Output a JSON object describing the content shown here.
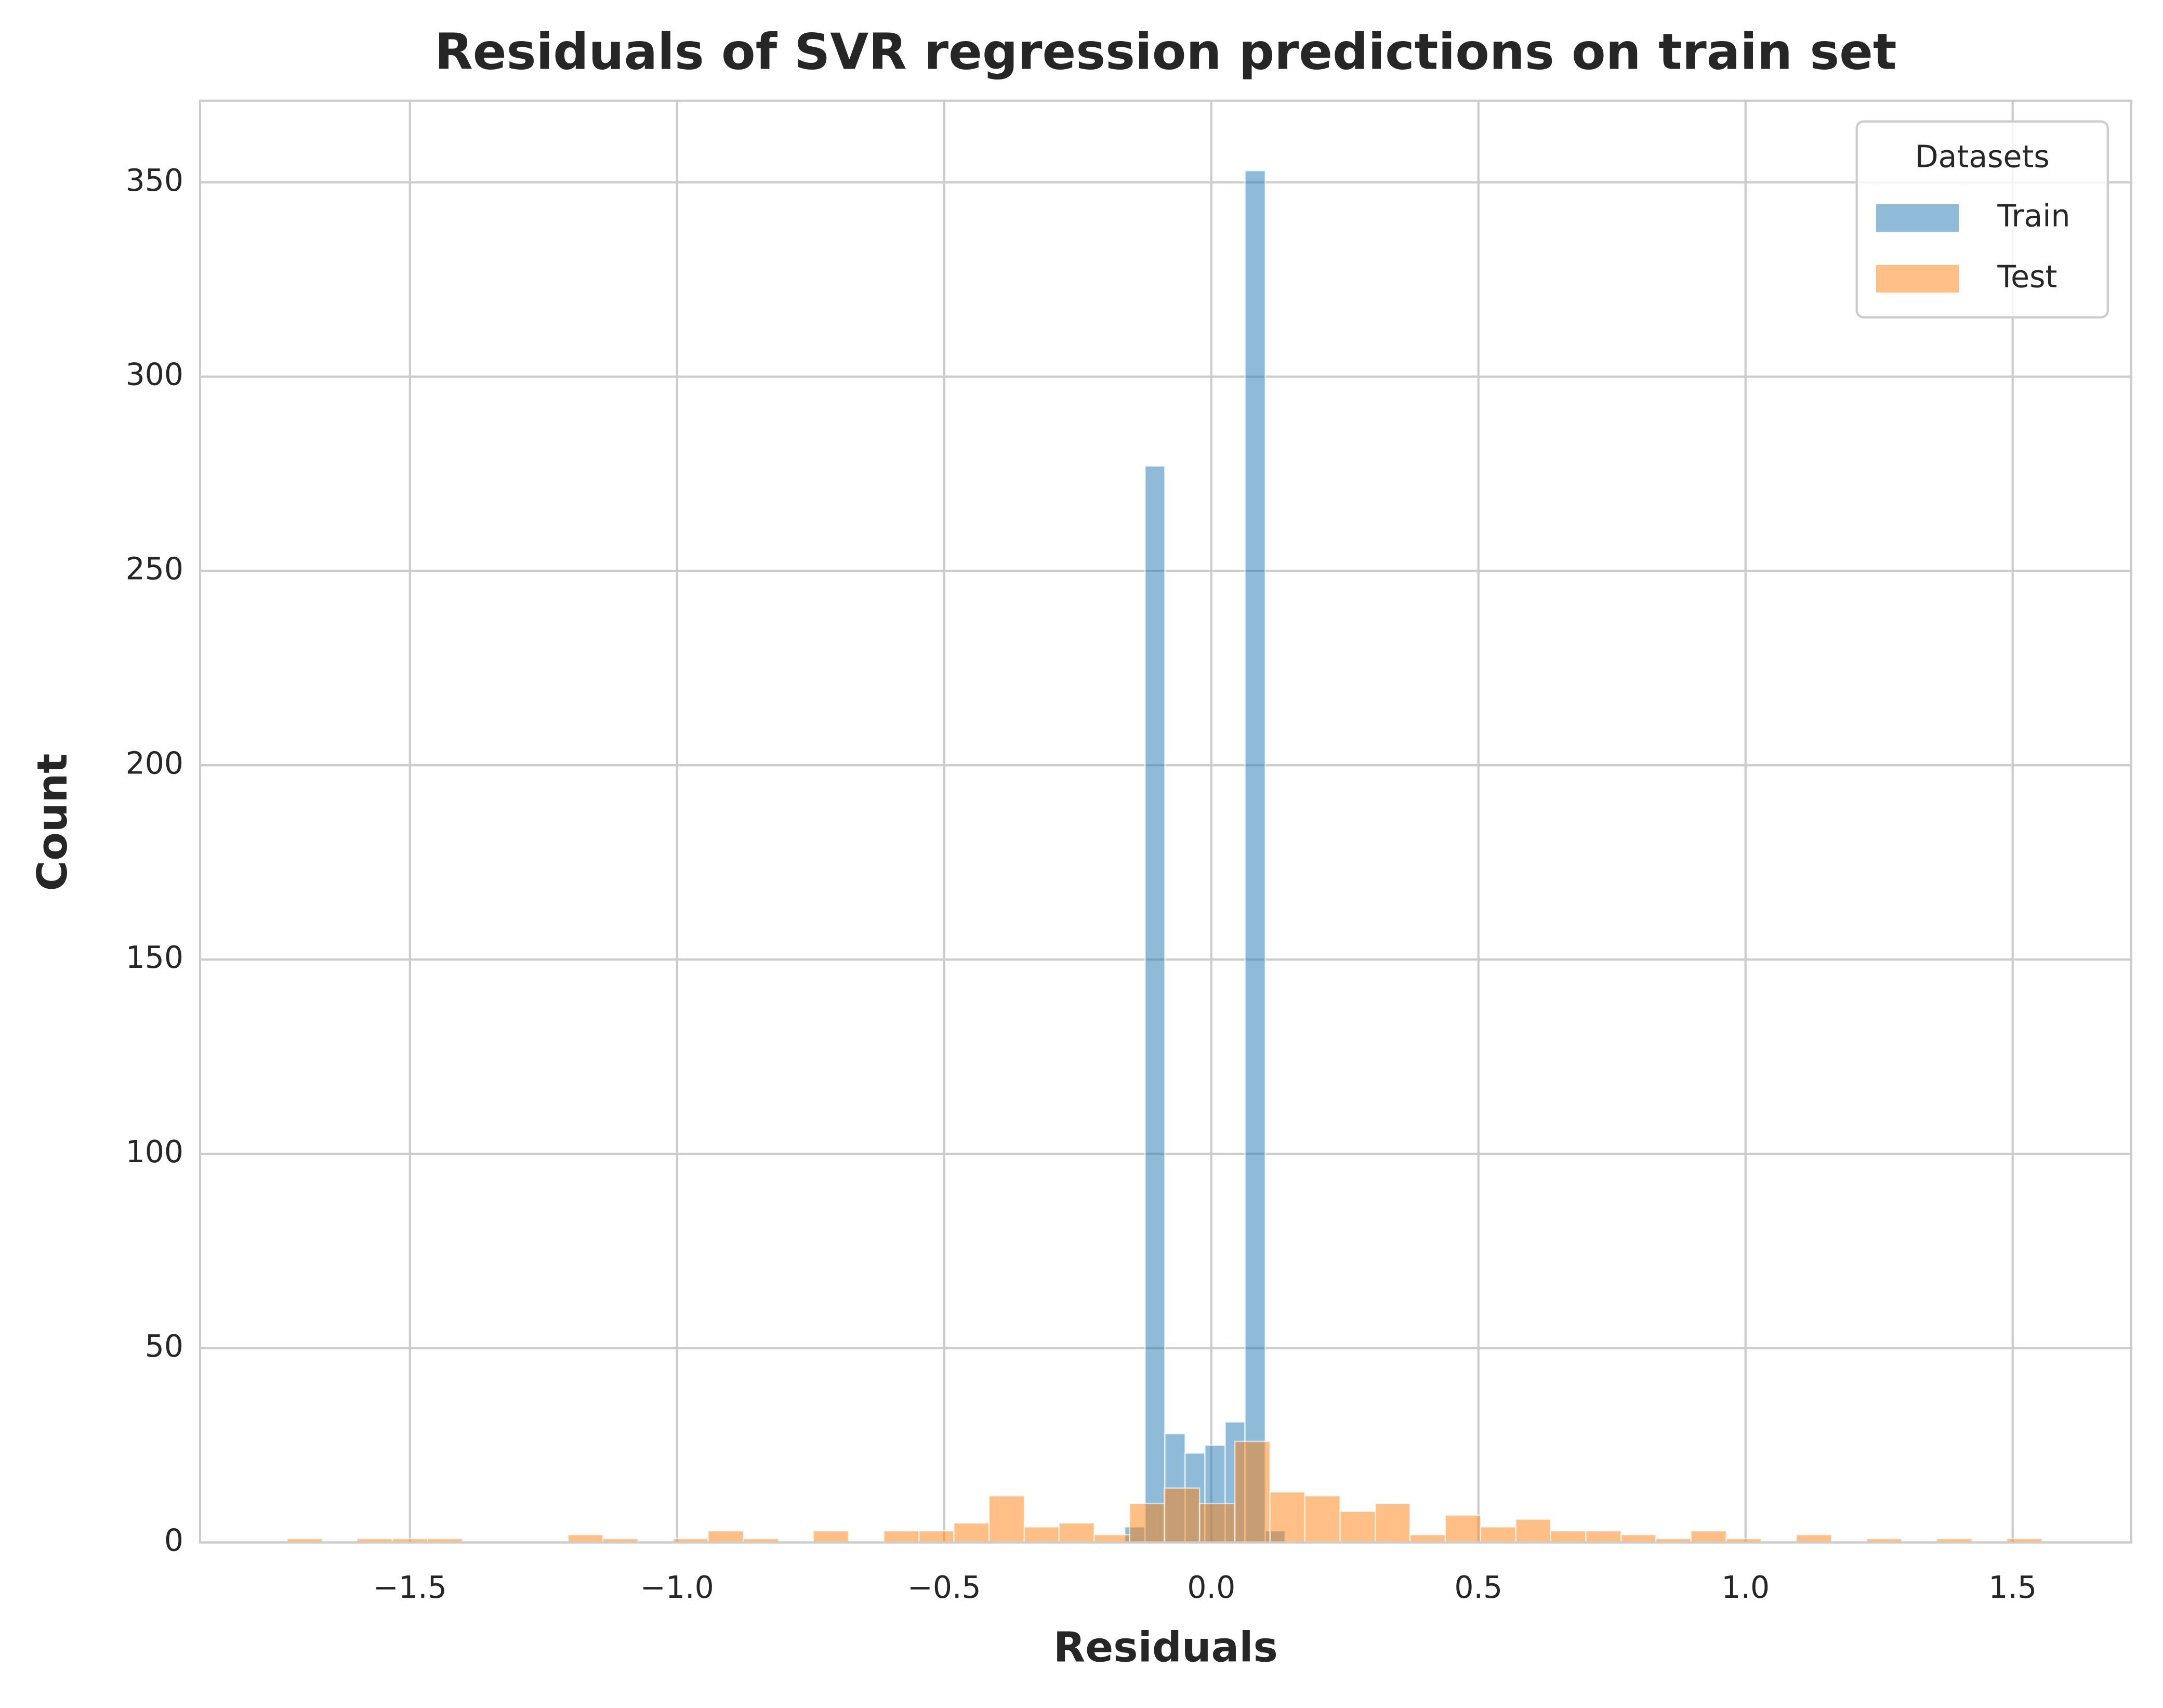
{
  "chart_data": {
    "type": "histogram",
    "title": "Residuals of SVR regression predictions on train set",
    "xlabel": "Residuals",
    "ylabel": "Count",
    "legend_title": "Datasets",
    "legend_loc": "upper right",
    "grid": true,
    "xlim": [
      -1.893,
      1.722
    ],
    "ylim": [
      0,
      371
    ],
    "xticks": [
      {
        "value": -1.5,
        "label": "−1.5"
      },
      {
        "value": -1.0,
        "label": "−1.0"
      },
      {
        "value": -0.5,
        "label": "−0.5"
      },
      {
        "value": 0.0,
        "label": "0.0"
      },
      0.5,
      {
        "value": 1.0,
        "label": "1.0"
      },
      1.5
    ],
    "yticks": [
      0,
      50,
      100,
      150,
      200,
      250,
      300,
      350
    ],
    "series": [
      {
        "name": "Train",
        "color": "#1f77b4",
        "bins": [
          -0.162,
          -0.124,
          -0.087,
          -0.049,
          -0.012,
          0.026,
          0.063,
          0.101,
          0.138
        ],
        "values": [
          4,
          277,
          28,
          23,
          25,
          31,
          353,
          3
        ]
      },
      {
        "name": "Test",
        "color": "#ff7f0e",
        "bins": [
          -1.73,
          -1.664,
          -1.599,
          -1.533,
          -1.467,
          -1.402,
          -1.336,
          -1.27,
          -1.204,
          -1.139,
          -1.073,
          -1.007,
          -0.942,
          -0.876,
          -0.81,
          -0.745,
          -0.679,
          -0.613,
          -0.547,
          -0.482,
          -0.416,
          -0.35,
          -0.285,
          -0.219,
          -0.153,
          -0.088,
          -0.022,
          0.044,
          0.11,
          0.175,
          0.241,
          0.307,
          0.372,
          0.438,
          0.504,
          0.57,
          0.635,
          0.701,
          0.767,
          0.832,
          0.898,
          0.964,
          1.029,
          1.095,
          1.161,
          1.227,
          1.292,
          1.358,
          1.424,
          1.489,
          1.555
        ],
        "values": [
          1,
          0,
          1,
          1,
          1,
          0,
          0,
          0,
          2,
          1,
          0,
          1,
          3,
          1,
          0,
          3,
          0,
          3,
          3,
          5,
          12,
          4,
          5,
          2,
          10,
          14,
          10,
          26,
          13,
          12,
          8,
          10,
          2,
          7,
          4,
          6,
          3,
          3,
          2,
          1,
          3,
          1,
          0,
          2,
          0,
          1,
          0,
          1,
          0,
          1
        ]
      }
    ]
  }
}
